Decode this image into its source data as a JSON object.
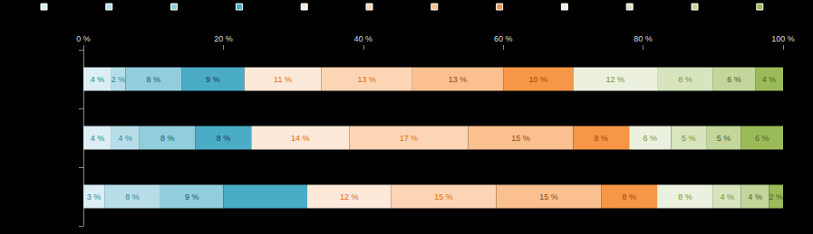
{
  "chart_data": {
    "type": "bar",
    "orientation": "horizontal",
    "stacked": true,
    "data_labels": true,
    "tick_labels": "x",
    "grid": false,
    "categories": [
      null,
      null,
      null
    ],
    "xlim": [
      0,
      100
    ],
    "xticks": [
      {
        "value": 0,
        "label": "0 %"
      },
      {
        "value": 20,
        "label": "20 %"
      },
      {
        "value": 40,
        "label": "40 %"
      },
      {
        "value": 60,
        "label": "60 %"
      },
      {
        "value": 80,
        "label": "80 %"
      },
      {
        "value": 100,
        "label": "100 %"
      }
    ],
    "series": [
      {
        "color": "#dbeef4",
        "values": [
          4,
          4,
          3
        ],
        "value_labels": [
          "4 %",
          "4 %",
          "3 %"
        ]
      },
      {
        "color": "#b7dee8",
        "values": [
          2,
          4,
          8
        ],
        "value_labels": [
          "2 %",
          "4 %",
          "8 %"
        ]
      },
      {
        "color": "#92cddc",
        "values": [
          8,
          8,
          9
        ],
        "value_labels": [
          "8 %",
          "8 %",
          "9 %"
        ]
      },
      {
        "color": "#4bacc6",
        "values": [
          9,
          8,
          12
        ],
        "value_labels": [
          "9 %",
          "8 %",
          null
        ]
      },
      {
        "color": "#fde9d9",
        "values": [
          11,
          14,
          12
        ],
        "value_labels": [
          "11 %",
          "14 %",
          "12 %"
        ]
      },
      {
        "color": "#fcd5b5",
        "values": [
          13,
          17,
          15
        ],
        "value_labels": [
          "13 %",
          "17 %",
          "15 %"
        ]
      },
      {
        "color": "#fac090",
        "values": [
          13,
          15,
          15
        ],
        "value_labels": [
          "13 %",
          "15 %",
          "15 %"
        ]
      },
      {
        "color": "#f79646",
        "values": [
          10,
          8,
          8
        ],
        "value_labels": [
          "10 %",
          "8 %",
          "8 %"
        ]
      },
      {
        "color": "#ebf1de",
        "values": [
          12,
          6,
          8
        ],
        "value_labels": [
          "12 %",
          "6 %",
          "8 %"
        ]
      },
      {
        "color": "#d7e4bd",
        "values": [
          8,
          5,
          4
        ],
        "value_labels": [
          "8 %",
          "5 %",
          "4 %"
        ]
      },
      {
        "color": "#c3d69b",
        "values": [
          6,
          5,
          4
        ],
        "value_labels": [
          "6 %",
          "5 %",
          "4 %"
        ]
      },
      {
        "color": "#9bbb59",
        "values": [
          4,
          6,
          2
        ],
        "value_labels": [
          "4 %",
          "6 %",
          "2 %"
        ]
      }
    ]
  }
}
